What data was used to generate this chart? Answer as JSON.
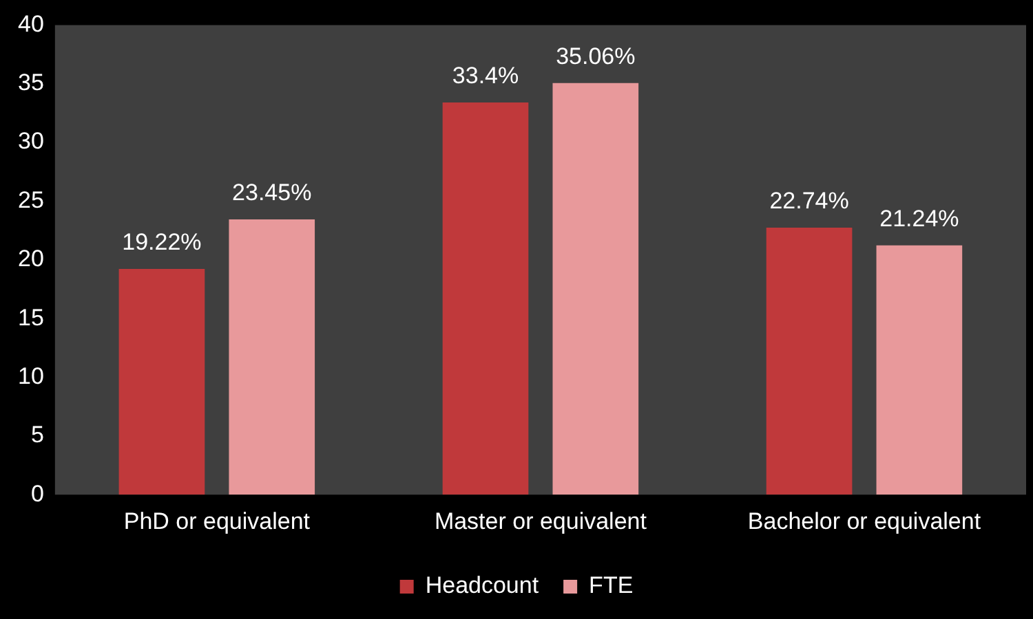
{
  "chart_data": {
    "type": "bar",
    "categories": [
      "PhD or equivalent",
      "Master or equivalent",
      "Bachelor or equivalent"
    ],
    "series": [
      {
        "name": "Headcount",
        "color": "#c0393b",
        "values": [
          19.22,
          33.4,
          22.74
        ],
        "value_labels": [
          "19.22%",
          "33.4%",
          "22.74%"
        ]
      },
      {
        "name": "FTE",
        "color": "#e8999b",
        "values": [
          23.45,
          35.06,
          21.24
        ],
        "value_labels": [
          "23.45%",
          "35.06%",
          "21.24%"
        ]
      }
    ],
    "ylim": [
      0,
      40
    ],
    "yticks": [
      0,
      5,
      10,
      15,
      20,
      25,
      30,
      35,
      40
    ],
    "grid": false,
    "legend": "bottom"
  }
}
